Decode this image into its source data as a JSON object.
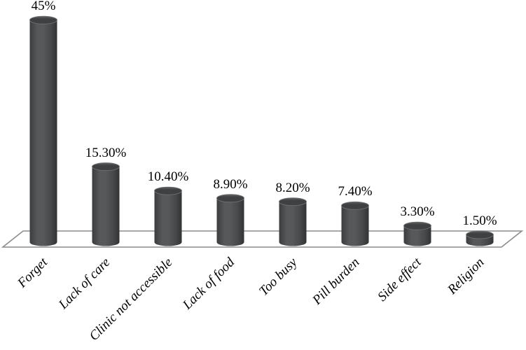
{
  "chart_data": {
    "type": "bar",
    "variant": "3d-cylinder",
    "orientation": "vertical",
    "title": "",
    "xlabel": "",
    "ylabel": "",
    "grid": false,
    "legend": false,
    "axis_ticks_visible": false,
    "ylim": [
      0,
      47
    ],
    "categories": [
      "Forget",
      "Lack of care",
      "Clinic not accessible",
      "Lack of food",
      "Too busy",
      "Pill burden",
      "Side effect",
      "Religion"
    ],
    "values": [
      45,
      15.3,
      10.4,
      8.9,
      8.2,
      7.4,
      3.3,
      1.5
    ],
    "data_labels": [
      "45%",
      "15.30%",
      "10.40%",
      "8.90%",
      "8.20%",
      "7.40%",
      "3.30%",
      "1.50%"
    ],
    "colors": {
      "bar_edge_dark": "#313334",
      "bar_left_dark": "#3a3c3e",
      "bar_mid_light": "#56585a",
      "bar_cap_top": "#5e6062",
      "bar_cap_main": "#3e4042",
      "cap_rim": "#6e7072",
      "floor_edge": "#8c8c8c",
      "floor_fill": "#ffffff",
      "label_text": "#000000",
      "background": "#ffffff"
    }
  }
}
